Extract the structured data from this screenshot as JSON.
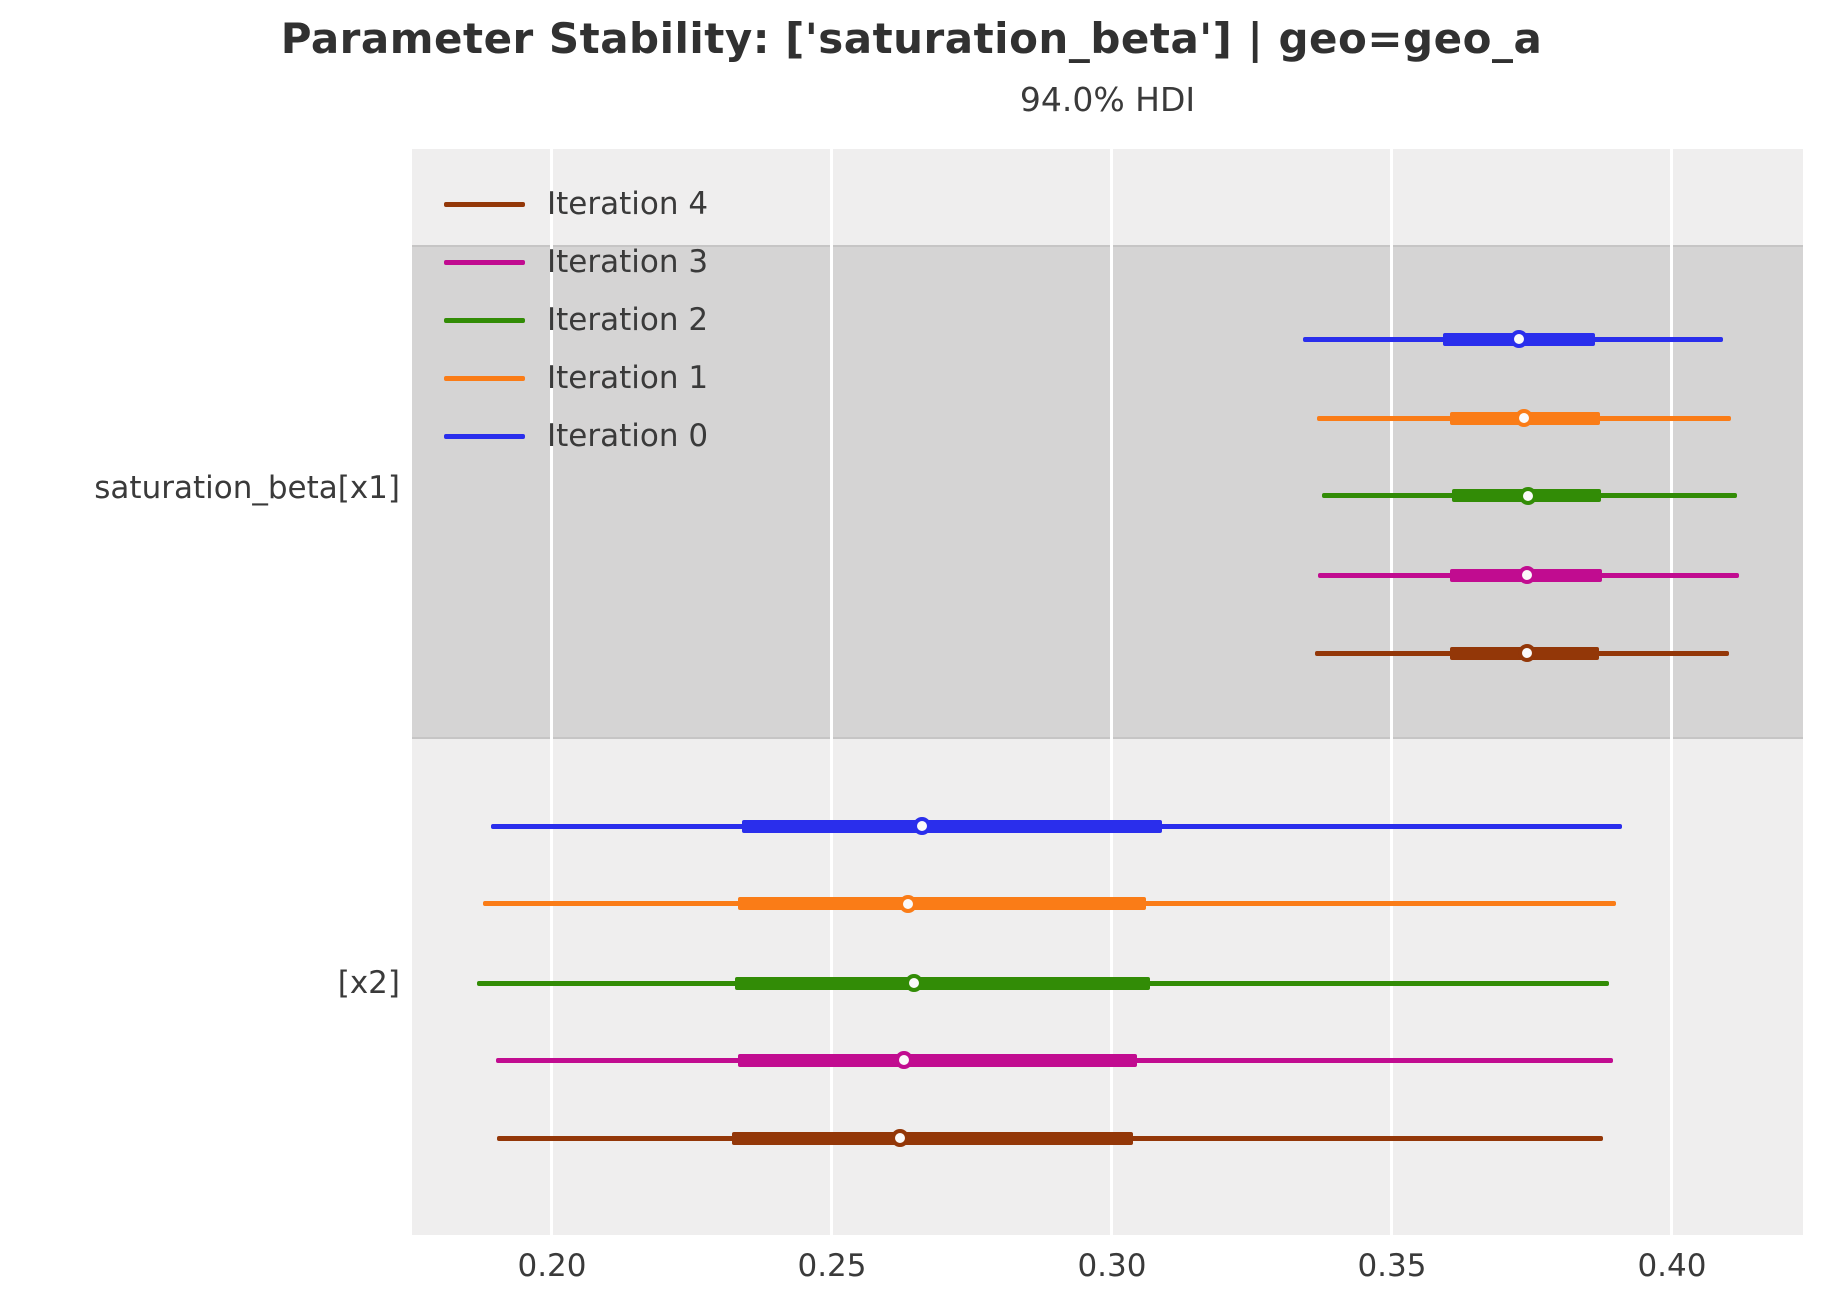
{
  "title": "Parameter Stability: ['saturation_beta'] | geo=geo_a",
  "subtitle": "94.0% HDI",
  "colors": {
    "figure_bg": "#ffffff",
    "axes_bg": "#efeeee",
    "shaded_band": "#d5d4d4",
    "gridline": "#ffffff",
    "text": "#3a3a3a",
    "marker_fill": "#fbfafa"
  },
  "legend": [
    {
      "label": "Iteration 4",
      "color": "#933708"
    },
    {
      "label": "Iteration 3",
      "color": "#c10c90"
    },
    {
      "label": "Iteration 2",
      "color": "#328c06"
    },
    {
      "label": "Iteration 1",
      "color": "#fa7c17"
    },
    {
      "label": "Iteration 0",
      "color": "#2a2eec"
    }
  ],
  "chart_data": {
    "type": "forest",
    "title": "Parameter Stability: ['saturation_beta'] | geo=geo_a",
    "subtitle": "94.0% HDI",
    "hdi_probability": 0.94,
    "xlim": [
      0.175,
      0.4234
    ],
    "x_ticks": [
      0.2,
      0.25,
      0.3,
      0.35,
      0.4
    ],
    "x_tick_labels": [
      "0.20",
      "0.25",
      "0.30",
      "0.35",
      "0.40"
    ],
    "grid": "vertical-white",
    "legend_position": "upper-left-inside",
    "groups": [
      {
        "label": "saturation_beta[x1]",
        "shaded": true,
        "band_frac": [
          0.0884,
          0.5433
        ],
        "rows": [
          {
            "iteration": "Iteration 0",
            "color": "#2a2eec",
            "y_frac": 0.175,
            "hdi": [
              0.3341,
              0.4091
            ],
            "quartile": [
              0.3591,
              0.3863
            ],
            "median": 0.3727
          },
          {
            "iteration": "Iteration 1",
            "color": "#fa7c17",
            "y_frac": 0.2477,
            "hdi": [
              0.3366,
              0.4105
            ],
            "quartile": [
              0.3604,
              0.3871
            ],
            "median": 0.3736
          },
          {
            "iteration": "Iteration 2",
            "color": "#328c06",
            "y_frac": 0.3195,
            "hdi": [
              0.3375,
              0.4116
            ],
            "quartile": [
              0.3607,
              0.3873
            ],
            "median": 0.3743
          },
          {
            "iteration": "Iteration 3",
            "color": "#c10c90",
            "y_frac": 0.3923,
            "hdi": [
              0.3368,
              0.412
            ],
            "quartile": [
              0.3604,
              0.3875
            ],
            "median": 0.3741
          },
          {
            "iteration": "Iteration 4",
            "color": "#933708",
            "y_frac": 0.4641,
            "hdi": [
              0.3363,
              0.4102
            ],
            "quartile": [
              0.3604,
              0.387
            ],
            "median": 0.3741
          }
        ]
      },
      {
        "label": "[x2]",
        "shaded": false,
        "band_frac": [
          0.5433,
          1.0
        ],
        "rows": [
          {
            "iteration": "Iteration 0",
            "color": "#2a2eec",
            "y_frac": 0.6234,
            "hdi": [
              0.1891,
              0.3911
            ],
            "quartile": [
              0.2339,
              0.3089
            ],
            "median": 0.2661
          },
          {
            "iteration": "Iteration 1",
            "color": "#fa7c17",
            "y_frac": 0.6952,
            "hdi": [
              0.1877,
              0.39
            ],
            "quartile": [
              0.2332,
              0.3061
            ],
            "median": 0.2636
          },
          {
            "iteration": "Iteration 2",
            "color": "#328c06",
            "y_frac": 0.768,
            "hdi": [
              0.1866,
              0.3888
            ],
            "quartile": [
              0.2327,
              0.3068
            ],
            "median": 0.2646
          },
          {
            "iteration": "Iteration 3",
            "color": "#c10c90",
            "y_frac": 0.8389,
            "hdi": [
              0.19,
              0.3895
            ],
            "quartile": [
              0.2332,
              0.3045
            ],
            "median": 0.2629
          },
          {
            "iteration": "Iteration 4",
            "color": "#933708",
            "y_frac": 0.9107,
            "hdi": [
              0.1902,
              0.3877
            ],
            "quartile": [
              0.2321,
              0.3038
            ],
            "median": 0.2621
          }
        ]
      }
    ]
  }
}
